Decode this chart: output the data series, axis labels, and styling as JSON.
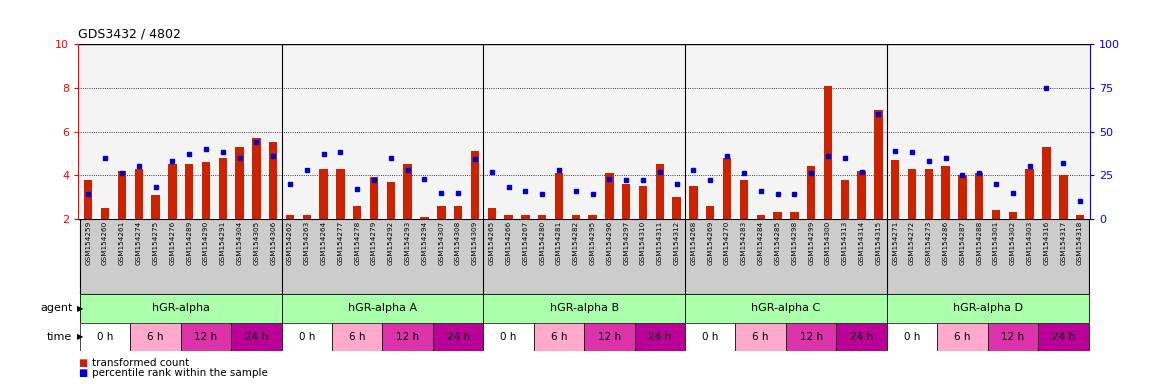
{
  "title": "GDS3432 / 4802",
  "left_yticks": [
    2,
    4,
    6,
    8,
    10
  ],
  "right_yticks": [
    0,
    25,
    50,
    75,
    100
  ],
  "left_ylim": [
    2,
    10
  ],
  "right_ylim": [
    0,
    100
  ],
  "samples": [
    "GSM154259",
    "GSM154260",
    "GSM154261",
    "GSM154274",
    "GSM154275",
    "GSM154276",
    "GSM154289",
    "GSM154290",
    "GSM154291",
    "GSM154304",
    "GSM154305",
    "GSM154306",
    "GSM154262",
    "GSM154263",
    "GSM154264",
    "GSM154277",
    "GSM154278",
    "GSM154279",
    "GSM154292",
    "GSM154293",
    "GSM154294",
    "GSM154307",
    "GSM154308",
    "GSM154309",
    "GSM154265",
    "GSM154266",
    "GSM154267",
    "GSM154280",
    "GSM154281",
    "GSM154282",
    "GSM154295",
    "GSM154296",
    "GSM154297",
    "GSM154310",
    "GSM154311",
    "GSM154312",
    "GSM154268",
    "GSM154269",
    "GSM154270",
    "GSM154283",
    "GSM154284",
    "GSM154285",
    "GSM154298",
    "GSM154299",
    "GSM154300",
    "GSM154313",
    "GSM154314",
    "GSM154315",
    "GSM154271",
    "GSM154272",
    "GSM154273",
    "GSM154286",
    "GSM154287",
    "GSM154288",
    "GSM154301",
    "GSM154302",
    "GSM154303",
    "GSM154316",
    "GSM154317",
    "GSM154318"
  ],
  "red_values": [
    3.8,
    2.5,
    4.2,
    4.3,
    3.1,
    4.5,
    4.5,
    4.6,
    4.8,
    5.3,
    5.7,
    5.5,
    2.2,
    2.2,
    4.3,
    4.3,
    2.6,
    3.9,
    3.7,
    4.5,
    2.1,
    2.6,
    2.6,
    5.1,
    2.5,
    2.2,
    2.2,
    2.2,
    4.1,
    2.2,
    2.2,
    4.1,
    3.6,
    3.5,
    4.5,
    3.0,
    3.5,
    2.6,
    4.8,
    3.8,
    2.2,
    2.3,
    2.3,
    4.4,
    8.1,
    3.8,
    4.2,
    7.0,
    4.7,
    4.3,
    4.3,
    4.4,
    4.0,
    4.1,
    2.4,
    2.3,
    4.3,
    5.3,
    4.0,
    2.2
  ],
  "blue_values": [
    14,
    35,
    26,
    30,
    18,
    33,
    37,
    40,
    38,
    35,
    44,
    36,
    20,
    28,
    37,
    38,
    17,
    22,
    35,
    28,
    23,
    15,
    15,
    34,
    27,
    18,
    16,
    14,
    28,
    16,
    14,
    23,
    22,
    22,
    27,
    20,
    28,
    22,
    36,
    26,
    16,
    14,
    14,
    26,
    36,
    35,
    27,
    60,
    39,
    38,
    33,
    35,
    25,
    26,
    20,
    15,
    30,
    75,
    32,
    10
  ],
  "groups": [
    {
      "label": "hGR-alpha",
      "start": 0,
      "end": 11
    },
    {
      "label": "hGR-alpha A",
      "start": 12,
      "end": 23
    },
    {
      "label": "hGR-alpha B",
      "start": 24,
      "end": 35
    },
    {
      "label": "hGR-alpha C",
      "start": 36,
      "end": 47
    },
    {
      "label": "hGR-alpha D",
      "start": 48,
      "end": 59
    }
  ],
  "time_labels": [
    "0 h",
    "6 h",
    "12 h",
    "24 h"
  ],
  "time_colors": [
    "#ffffff",
    "#ffaacc",
    "#dd33aa",
    "#bb0099"
  ],
  "agent_color": "#aaffaa",
  "bar_color": "#cc2200",
  "dot_color": "#0000cc",
  "sample_bg": "#cccccc",
  "legend_red": "transformed count",
  "legend_blue": "percentile rank within the sample"
}
